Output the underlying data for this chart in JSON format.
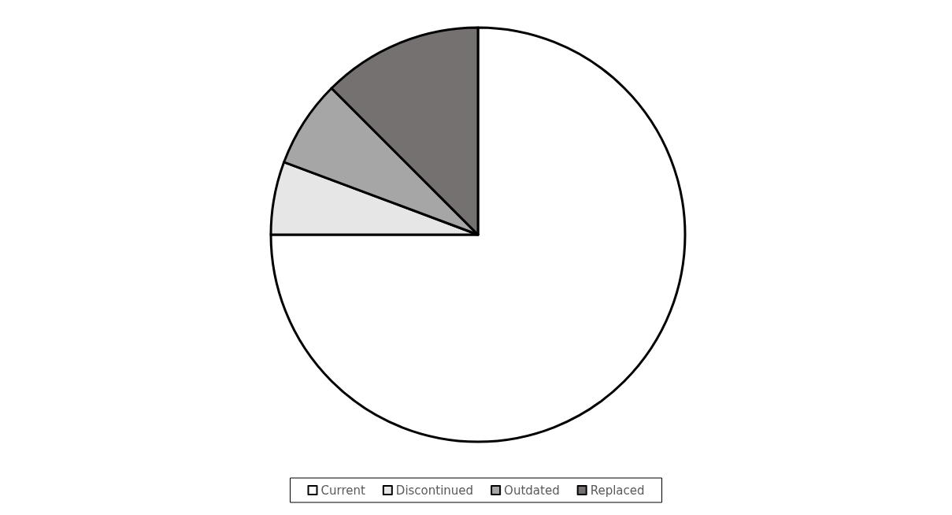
{
  "chart_data": {
    "type": "pie",
    "categories": [
      "Current",
      "Discontinued",
      "Outdated",
      "Replaced"
    ],
    "values": [
      75,
      5.7,
      6.8,
      12.5
    ],
    "colors": [
      "#ffffff",
      "#e6e6e6",
      "#a6a6a6",
      "#767171"
    ],
    "legend": "bottom"
  }
}
